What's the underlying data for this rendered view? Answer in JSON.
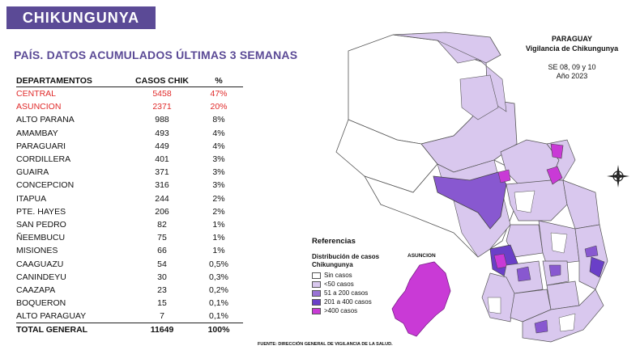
{
  "header": {
    "title": "CHIKUNGUNYA"
  },
  "subtitle": "PAÍS. DATOS ACUMULADOS ÚLTIMAS 3 SEMANAS",
  "table": {
    "headers": [
      "DEPARTAMENTOS",
      "CASOS CHIK",
      "%"
    ],
    "rows": [
      {
        "dept": "CENTRAL",
        "cases": "5458",
        "pct": "47%",
        "highlight": true
      },
      {
        "dept": "ASUNCION",
        "cases": "2371",
        "pct": "20%",
        "highlight": true
      },
      {
        "dept": "ALTO PARANA",
        "cases": "988",
        "pct": "8%"
      },
      {
        "dept": "AMAMBAY",
        "cases": "493",
        "pct": "4%"
      },
      {
        "dept": "PARAGUARI",
        "cases": "449",
        "pct": "4%"
      },
      {
        "dept": "CORDILLERA",
        "cases": "401",
        "pct": "3%"
      },
      {
        "dept": "GUAIRA",
        "cases": "371",
        "pct": "3%"
      },
      {
        "dept": "CONCEPCION",
        "cases": "316",
        "pct": "3%"
      },
      {
        "dept": "ITAPUA",
        "cases": "244",
        "pct": "2%"
      },
      {
        "dept": "PTE. HAYES",
        "cases": "206",
        "pct": "2%"
      },
      {
        "dept": "SAN PEDRO",
        "cases": "82",
        "pct": "1%"
      },
      {
        "dept": "ÑEEMBUCU",
        "cases": "75",
        "pct": "1%"
      },
      {
        "dept": "MISIONES",
        "cases": "66",
        "pct": "1%"
      },
      {
        "dept": "CAAGUAZU",
        "cases": "54",
        "pct": "0,5%"
      },
      {
        "dept": "CANINDEYU",
        "cases": "30",
        "pct": "0,3%"
      },
      {
        "dept": "CAAZAPA",
        "cases": "23",
        "pct": "0,2%"
      },
      {
        "dept": "BOQUERON",
        "cases": "15",
        "pct": "0,1%"
      },
      {
        "dept": "ALTO PARAGUAY",
        "cases": "7",
        "pct": "0,1%"
      }
    ],
    "total": {
      "dept": "TOTAL GENERAL",
      "cases": "11649",
      "pct": "100%"
    }
  },
  "map": {
    "title_line1": "PARAGUAY",
    "title_line2": "Vigilancia de Chikungunya",
    "weeks": "SE 08, 09 y 10",
    "year": "Año 2023",
    "inset_label": "ASUNCION"
  },
  "legend": {
    "heading": "Referencias",
    "title_line1": "Distribución de casos",
    "title_line2": "Chikungunya",
    "items": [
      {
        "label": "Sin casos",
        "color": "#ffffff"
      },
      {
        "label": "<50 casos",
        "color": "#d9c8ee"
      },
      {
        "label": "51 a 200 casos",
        "color": "#9a73d6"
      },
      {
        "label": "201 a 400 casos",
        "color": "#6a3fc8"
      },
      {
        "label": ">400 casos",
        "color": "#c93ad6"
      }
    ]
  },
  "source": "FUENTE: DIRECCIÓN GENERAL DE VIGILANCIA DE LA SALUD.",
  "colors": {
    "accent": "#5b4a96",
    "highlight": "#e02a2a"
  }
}
